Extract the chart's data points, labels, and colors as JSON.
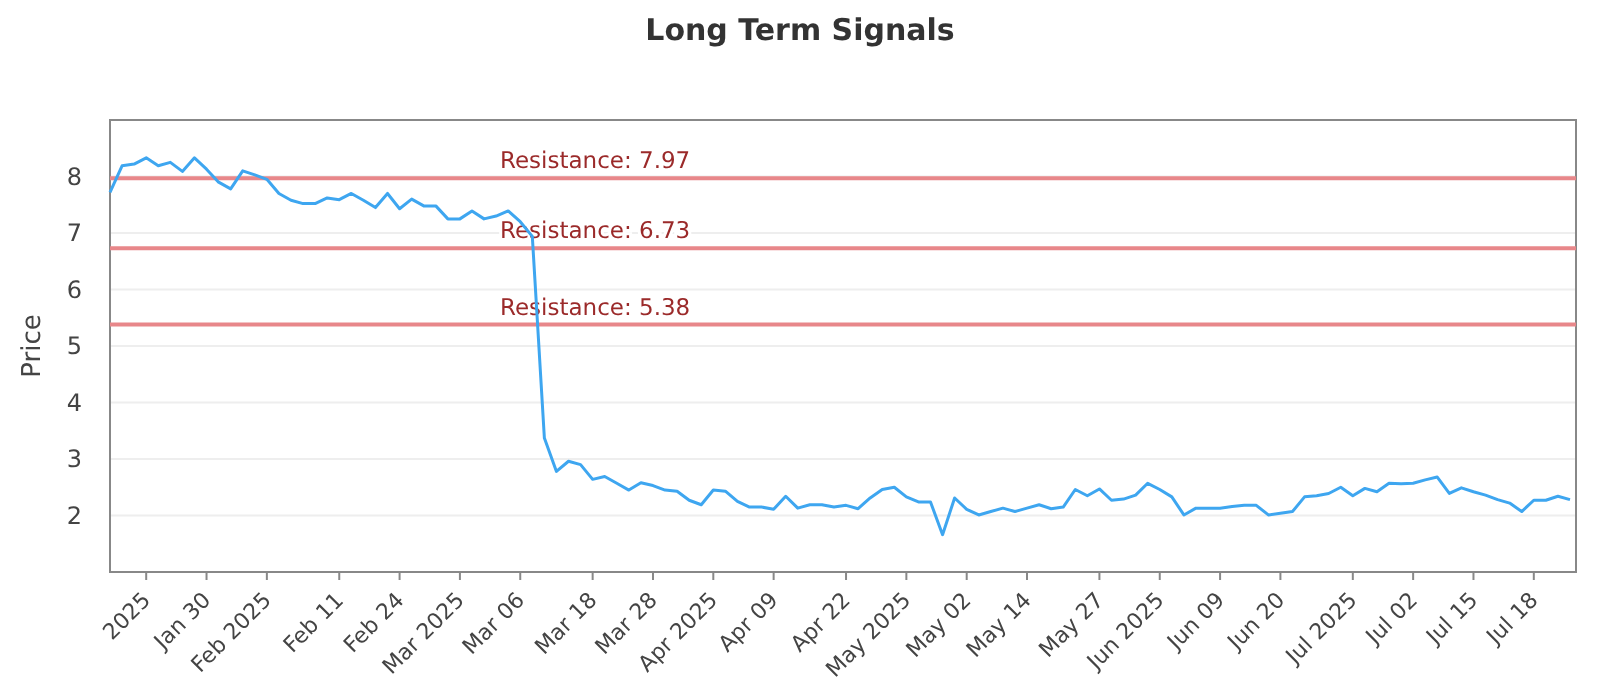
{
  "chart_data": {
    "type": "line",
    "title": "Long Term Signals",
    "ylabel": "Price",
    "categories": [
      null,
      null,
      null,
      "2025",
      null,
      null,
      null,
      null,
      "Jan 30",
      null,
      null,
      null,
      null,
      "Feb 2025",
      null,
      null,
      null,
      null,
      null,
      "Feb 11",
      null,
      null,
      null,
      null,
      "Feb 24",
      null,
      null,
      null,
      null,
      "Mar 2025",
      null,
      null,
      null,
      null,
      "Mar 06",
      null,
      null,
      null,
      null,
      null,
      "Mar 18",
      null,
      null,
      null,
      null,
      "Mar 28",
      null,
      null,
      null,
      null,
      "Apr 2025",
      null,
      null,
      null,
      null,
      "Apr 09",
      null,
      null,
      null,
      null,
      null,
      "Apr 22",
      null,
      null,
      null,
      null,
      "May 2025",
      null,
      null,
      null,
      null,
      "May 02",
      null,
      null,
      null,
      null,
      "May 14",
      null,
      null,
      null,
      null,
      null,
      "May 27",
      null,
      null,
      null,
      null,
      "Jun 2025",
      null,
      null,
      null,
      null,
      "Jun 09",
      null,
      null,
      null,
      null,
      "Jun 20",
      null,
      null,
      null,
      null,
      null,
      "Jul 2025",
      null,
      null,
      null,
      null,
      "Jul 02",
      null,
      null,
      null,
      null,
      "Jul 15",
      null,
      null,
      null,
      null,
      "Jul 18",
      null,
      null,
      null
    ],
    "series": [
      {
        "color": "#3ea6f0",
        "values": [
          7.72,
          8.19,
          8.22,
          8.33,
          8.19,
          8.25,
          8.09,
          8.33,
          8.13,
          7.9,
          7.78,
          8.1,
          8.03,
          7.95,
          7.7,
          7.58,
          7.52,
          7.52,
          7.62,
          7.59,
          7.7,
          7.58,
          7.45,
          7.7,
          7.43,
          7.6,
          7.48,
          7.48,
          7.25,
          7.25,
          7.39,
          7.25,
          7.3,
          7.39,
          7.2,
          6.94,
          3.37,
          2.78,
          2.96,
          2.9,
          2.64,
          2.69,
          2.57,
          2.45,
          2.58,
          2.53,
          2.45,
          2.43,
          2.27,
          2.19,
          2.45,
          2.43,
          2.25,
          2.15,
          2.15,
          2.11,
          2.34,
          2.13,
          2.19,
          2.19,
          2.15,
          2.18,
          2.12,
          2.31,
          2.46,
          2.5,
          2.33,
          2.24,
          2.24,
          1.66,
          2.31,
          2.11,
          2.01,
          2.07,
          2.13,
          2.07,
          2.13,
          2.19,
          2.12,
          2.15,
          2.46,
          2.35,
          2.47,
          2.27,
          2.29,
          2.36,
          2.57,
          2.46,
          2.33,
          2.01,
          2.13,
          2.13,
          2.13,
          2.16,
          2.18,
          2.18,
          2.01,
          2.04,
          2.07,
          2.33,
          2.35,
          2.39,
          2.5,
          2.35,
          2.48,
          2.42,
          2.57,
          2.56,
          2.57,
          2.63,
          2.68,
          2.39,
          2.49,
          2.42,
          2.36,
          2.28,
          2.22,
          2.07,
          2.27,
          2.27,
          2.34,
          2.28
        ]
      }
    ],
    "ylim": [
      1,
      9
    ],
    "yticks": [
      2,
      3,
      4,
      5,
      6,
      7,
      8
    ],
    "grid": "y",
    "marker": "none",
    "line_style": "solid",
    "ref_lines": [
      {
        "axis": "y",
        "value": 7.97,
        "label": "Resistance: 7.97",
        "color": "#e8878a"
      },
      {
        "axis": "y",
        "value": 6.73,
        "label": "Resistance: 6.73",
        "color": "#e8878a"
      },
      {
        "axis": "y",
        "value": 5.38,
        "label": "Resistance: 5.38",
        "color": "#e8878a"
      }
    ]
  }
}
